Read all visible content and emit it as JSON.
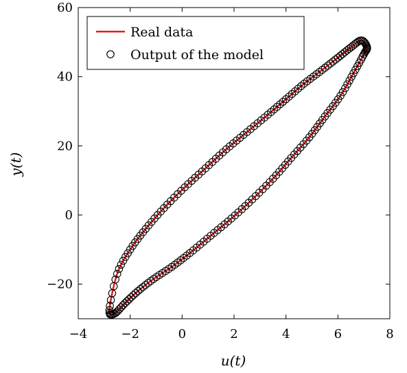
{
  "chart_data": {
    "type": "line",
    "title": "",
    "xlabel": "u(t)",
    "ylabel": "y(t)",
    "xlim": [
      -4,
      8
    ],
    "ylim": [
      -30,
      60
    ],
    "xticks": [
      -4,
      -2,
      0,
      2,
      4,
      6,
      8
    ],
    "yticks": [
      -20,
      0,
      20,
      40,
      60
    ],
    "xtick_labels": [
      "−4",
      "−2",
      "0",
      "2",
      "4",
      "6",
      "8"
    ],
    "ytick_labels": [
      "−20",
      "0",
      "20",
      "40",
      "60"
    ],
    "grid": false,
    "legend_position": "top-left",
    "series": [
      {
        "name": "Real data",
        "style": "line",
        "color": "#e41a1c",
        "x": [
          7.12,
          6.9,
          6.5,
          6.0,
          5.4,
          4.7,
          4.0,
          3.3,
          2.5,
          1.7,
          0.9,
          0.1,
          -0.7,
          -1.4,
          -2.0,
          -2.5,
          -2.8,
          -2.6,
          -2.2,
          -1.7,
          -1.1,
          -0.4,
          0.3,
          1.1,
          1.9,
          2.7,
          3.5,
          4.2,
          4.9,
          5.5,
          6.1,
          6.6,
          7.0,
          7.12
        ],
        "y": [
          48.5,
          50.5,
          48.5,
          45.5,
          42.0,
          38.0,
          33.5,
          29.0,
          24.0,
          19.0,
          13.5,
          8.0,
          2.0,
          -4.0,
          -10.0,
          -17.0,
          -27.5,
          -28.5,
          -25.5,
          -22.0,
          -18.5,
          -15.0,
          -11.0,
          -6.0,
          -1.0,
          4.5,
          10.5,
          16.5,
          22.5,
          28.5,
          34.5,
          41.0,
          46.5,
          48.5
        ]
      },
      {
        "name": "Output of the model",
        "style": "markers",
        "color": "#000000",
        "x": [
          7.12,
          6.9,
          6.5,
          6.0,
          5.4,
          4.7,
          4.0,
          3.3,
          2.5,
          1.7,
          0.9,
          0.1,
          -0.7,
          -1.4,
          -2.0,
          -2.5,
          -2.8,
          -2.6,
          -2.2,
          -1.7,
          -1.1,
          -0.4,
          0.3,
          1.1,
          1.9,
          2.7,
          3.5,
          4.2,
          4.9,
          5.5,
          6.1,
          6.6,
          7.0,
          7.12
        ],
        "y": [
          48.5,
          50.5,
          48.5,
          45.5,
          42.0,
          38.0,
          33.5,
          29.0,
          24.0,
          19.0,
          13.5,
          8.0,
          2.0,
          -4.0,
          -10.0,
          -17.0,
          -27.5,
          -28.5,
          -25.5,
          -22.0,
          -18.5,
          -15.0,
          -11.0,
          -6.0,
          -1.0,
          4.5,
          10.5,
          16.5,
          22.5,
          28.5,
          34.5,
          41.0,
          46.5,
          48.5
        ]
      }
    ]
  }
}
